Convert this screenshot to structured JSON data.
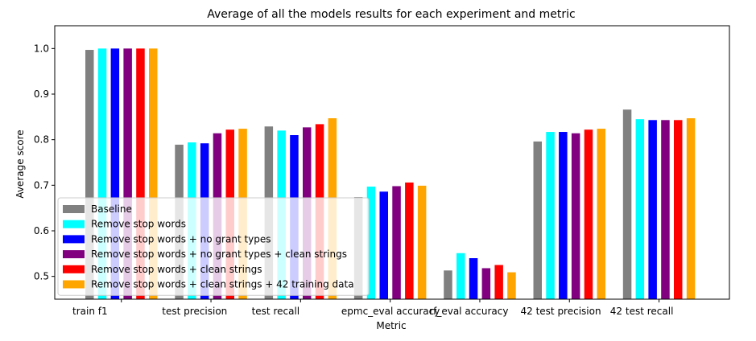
{
  "chart_data": {
    "type": "bar",
    "title": "Average of all the models results for each experiment and metric",
    "xlabel": "Metric",
    "ylabel": "Average score",
    "ylim": [
      0.45,
      1.05
    ],
    "yticks": [
      "0.5",
      "0.6",
      "0.7",
      "0.8",
      "0.9",
      "1.0"
    ],
    "categories": [
      "train f1",
      "test precision",
      "test recall",
      "epmc_eval accuracy",
      "rf_eval accuracy",
      "42 test precision",
      "42 test recall"
    ],
    "series": [
      {
        "name": "Baseline",
        "color": "#808080",
        "values": [
          0.997,
          0.789,
          0.829,
          0.674,
          0.513,
          0.796,
          0.866
        ]
      },
      {
        "name": "Remove stop words",
        "color": "#00ffff",
        "values": [
          1.0,
          0.794,
          0.82,
          0.697,
          0.551,
          0.817,
          0.845
        ]
      },
      {
        "name": "Remove stop words + no grant types",
        "color": "#0000ff",
        "values": [
          1.0,
          0.792,
          0.81,
          0.686,
          0.54,
          0.817,
          0.843
        ]
      },
      {
        "name": "Remove stop words + no grant types + clean strings",
        "color": "#800080",
        "values": [
          1.0,
          0.814,
          0.827,
          0.698,
          0.518,
          0.814,
          0.843
        ]
      },
      {
        "name": "Remove stop words + clean strings",
        "color": "#ff0000",
        "values": [
          1.0,
          0.822,
          0.834,
          0.706,
          0.525,
          0.822,
          0.843
        ]
      },
      {
        "name": "Remove stop words + clean strings + 42 training data",
        "color": "#ffa500",
        "values": [
          1.0,
          0.824,
          0.847,
          0.699,
          0.509,
          0.824,
          0.847
        ]
      }
    ],
    "legend_position": "lower-left",
    "grid": false
  }
}
